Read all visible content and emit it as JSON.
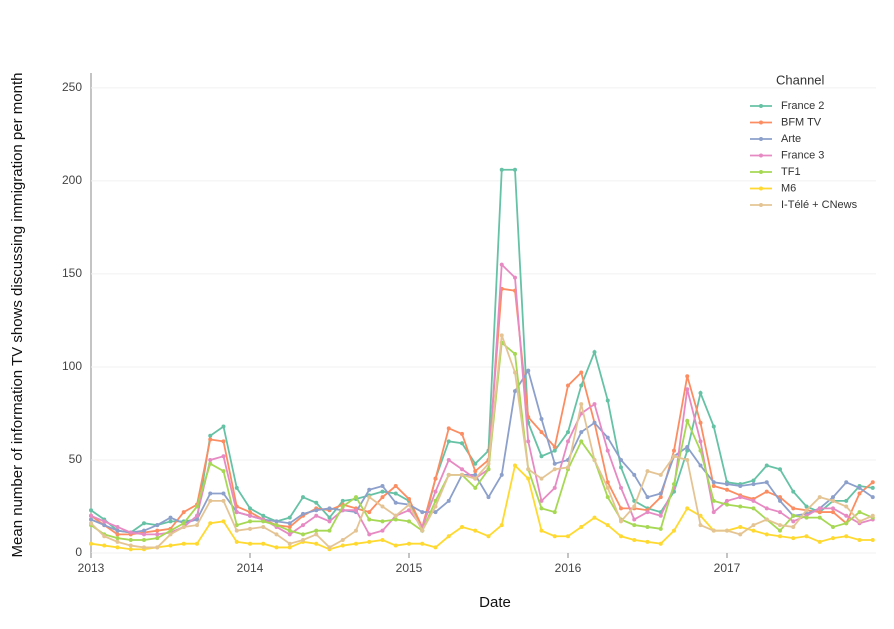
{
  "chart_data": {
    "type": "line",
    "x_label": "Date",
    "y_label": "Mean number of information  TV shows discussing immigration per month",
    "legend_title": "Channel",
    "legend": "top-right",
    "grid": true,
    "x": [
      "2013-01",
      "2013-02",
      "2013-03",
      "2013-04",
      "2013-05",
      "2013-06",
      "2013-07",
      "2013-08",
      "2013-09",
      "2013-10",
      "2013-11",
      "2013-12",
      "2014-01",
      "2014-02",
      "2014-03",
      "2014-04",
      "2014-05",
      "2014-06",
      "2014-07",
      "2014-08",
      "2014-09",
      "2014-10",
      "2014-11",
      "2014-12",
      "2015-01",
      "2015-02",
      "2015-03",
      "2015-04",
      "2015-05",
      "2015-06",
      "2015-07",
      "2015-08",
      "2015-09",
      "2015-10",
      "2015-11",
      "2015-12",
      "2016-01",
      "2016-02",
      "2016-03",
      "2016-04",
      "2016-05",
      "2016-06",
      "2016-07",
      "2016-08",
      "2016-09",
      "2016-10",
      "2016-11",
      "2016-12",
      "2017-01",
      "2017-02",
      "2017-03",
      "2017-04",
      "2017-05",
      "2017-06",
      "2017-07",
      "2017-08",
      "2017-09",
      "2017-10",
      "2017-11",
      "2017-12"
    ],
    "xticks": [
      {
        "value": "2013-01",
        "label": "2013"
      },
      {
        "value": "2014-01",
        "label": "2014"
      },
      {
        "value": "2015-01",
        "label": "2015"
      },
      {
        "value": "2016-01",
        "label": "2016"
      },
      {
        "value": "2017-01",
        "label": "2017"
      }
    ],
    "ylim": [
      0,
      258
    ],
    "yticks": [
      0,
      50,
      100,
      150,
      200,
      250
    ],
    "series": [
      {
        "name": "France 2",
        "color": "#66c2a5",
        "values": [
          23,
          18,
          12,
          11,
          16,
          15,
          17,
          17,
          18,
          63,
          68,
          35,
          24,
          20,
          17,
          19,
          30,
          27,
          19,
          28,
          29,
          31,
          33,
          32,
          28,
          12,
          40,
          60,
          59,
          48,
          55,
          206,
          206,
          70,
          52,
          55,
          65,
          90,
          108,
          82,
          46,
          28,
          24,
          22,
          33,
          55,
          86,
          68,
          38,
          37,
          39,
          47,
          45,
          33,
          25,
          22,
          28,
          28,
          36,
          35
        ]
      },
      {
        "name": "BFM TV",
        "color": "#fc8d62",
        "values": [
          20,
          15,
          10,
          10,
          11,
          12,
          13,
          22,
          26,
          61,
          60,
          25,
          22,
          18,
          15,
          14,
          20,
          24,
          23,
          26,
          24,
          22,
          30,
          36,
          29,
          14,
          40,
          67,
          64,
          44,
          50,
          142,
          141,
          73,
          65,
          57,
          90,
          97,
          70,
          38,
          24,
          24,
          23,
          30,
          55,
          95,
          70,
          36,
          34,
          31,
          29,
          33,
          30,
          24,
          23,
          22,
          22,
          16,
          32,
          38
        ]
      },
      {
        "name": "Arte",
        "color": "#8da0cb",
        "values": [
          18,
          15,
          12,
          11,
          12,
          15,
          19,
          16,
          18,
          32,
          32,
          22,
          20,
          18,
          17,
          16,
          21,
          23,
          24,
          23,
          22,
          34,
          36,
          27,
          26,
          22,
          22,
          28,
          42,
          42,
          30,
          42,
          87,
          98,
          72,
          48,
          50,
          65,
          70,
          62,
          50,
          42,
          30,
          32,
          52,
          57,
          47,
          38,
          37,
          36,
          37,
          38,
          28,
          20,
          21,
          24,
          30,
          38,
          35,
          30
        ]
      },
      {
        "name": "France 3",
        "color": "#e78ac3",
        "values": [
          20,
          17,
          14,
          11,
          10,
          10,
          11,
          14,
          20,
          50,
          52,
          22,
          20,
          18,
          14,
          10,
          15,
          20,
          17,
          23,
          23,
          10,
          12,
          20,
          23,
          14,
          33,
          50,
          45,
          40,
          45,
          155,
          148,
          60,
          28,
          35,
          60,
          75,
          80,
          55,
          35,
          18,
          22,
          20,
          35,
          88,
          60,
          22,
          28,
          30,
          28,
          24,
          22,
          17,
          20,
          24,
          24,
          20,
          16,
          18
        ]
      },
      {
        "name": "TF1",
        "color": "#a6d854",
        "values": [
          15,
          10,
          8,
          7,
          7,
          8,
          12,
          16,
          25,
          48,
          44,
          15,
          17,
          17,
          15,
          12,
          10,
          12,
          12,
          25,
          30,
          18,
          17,
          18,
          17,
          12,
          28,
          42,
          42,
          35,
          45,
          113,
          107,
          45,
          24,
          22,
          45,
          60,
          50,
          30,
          18,
          15,
          14,
          13,
          37,
          71,
          55,
          28,
          26,
          25,
          24,
          18,
          12,
          20,
          19,
          19,
          14,
          16,
          22,
          19
        ]
      },
      {
        "name": "M6",
        "color": "#ffd92f",
        "values": [
          5,
          4,
          3,
          2,
          2,
          3,
          4,
          5,
          5,
          16,
          17,
          6,
          5,
          5,
          3,
          3,
          6,
          5,
          2,
          4,
          5,
          6,
          7,
          4,
          5,
          5,
          3,
          9,
          14,
          12,
          9,
          15,
          47,
          40,
          12,
          9,
          9,
          14,
          19,
          15,
          9,
          7,
          6,
          5,
          12,
          24,
          20,
          12,
          12,
          14,
          12,
          10,
          9,
          8,
          9,
          6,
          8,
          9,
          7,
          7
        ]
      },
      {
        "name": "I-Télé + CNews",
        "color": "#e5c494",
        "values": [
          16,
          9,
          6,
          4,
          3,
          3,
          10,
          14,
          15,
          28,
          28,
          12,
          13,
          14,
          10,
          5,
          7,
          10,
          3,
          7,
          12,
          30,
          25,
          20,
          26,
          12,
          25,
          42,
          42,
          40,
          48,
          117,
          97,
          45,
          40,
          45,
          46,
          80,
          50,
          35,
          17,
          25,
          44,
          42,
          52,
          50,
          15,
          12,
          12,
          10,
          15,
          18,
          15,
          14,
          23,
          30,
          28,
          25,
          17,
          20
        ]
      }
    ]
  }
}
